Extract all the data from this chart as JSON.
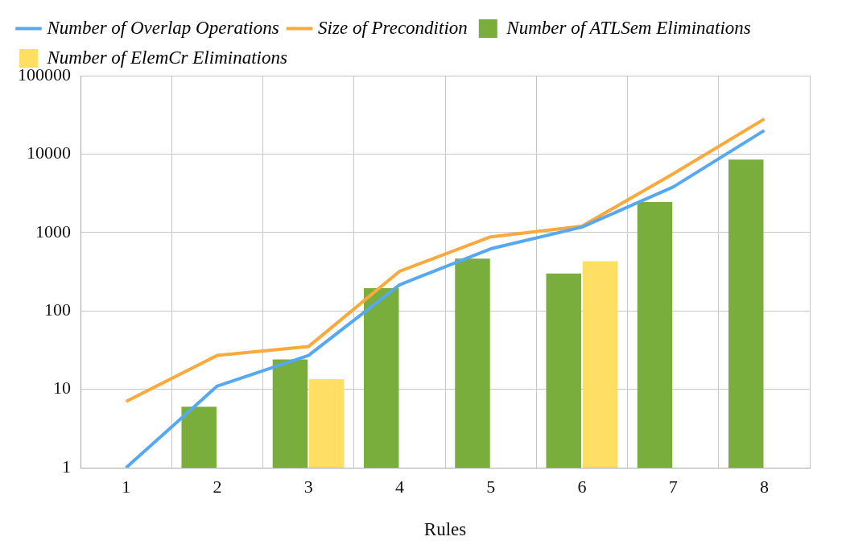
{
  "chart_data": {
    "type": "bar",
    "xlabel": "Rules",
    "categories": [
      "1",
      "2",
      "3",
      "4",
      "5",
      "6",
      "7",
      "8"
    ],
    "series": [
      {
        "name": "Number of Overlap Operations",
        "type": "line",
        "color": "#55a8f2",
        "values": [
          1,
          11,
          27,
          215,
          620,
          1170,
          3800,
          20000
        ]
      },
      {
        "name": "Size of Precondition",
        "type": "line",
        "color": "#fba83c",
        "values": [
          7,
          27,
          35,
          320,
          880,
          1200,
          5600,
          28000
        ]
      },
      {
        "name": "Number of ATLSem Eliminations",
        "type": "bar",
        "color": "#7aae3c",
        "values": [
          null,
          6,
          24,
          195,
          465,
          300,
          2450,
          8500
        ]
      },
      {
        "name": "Number of ElemCr Eliminations",
        "type": "bar",
        "color": "#ffdf63",
        "values": [
          null,
          null,
          13.5,
          null,
          null,
          430,
          null,
          null
        ]
      }
    ],
    "log": "y",
    "ylim": [
      1,
      100000
    ],
    "yticks": [
      1,
      10,
      100,
      1000,
      10000,
      100000
    ],
    "grid": true,
    "legend": "top",
    "marker": "none"
  }
}
